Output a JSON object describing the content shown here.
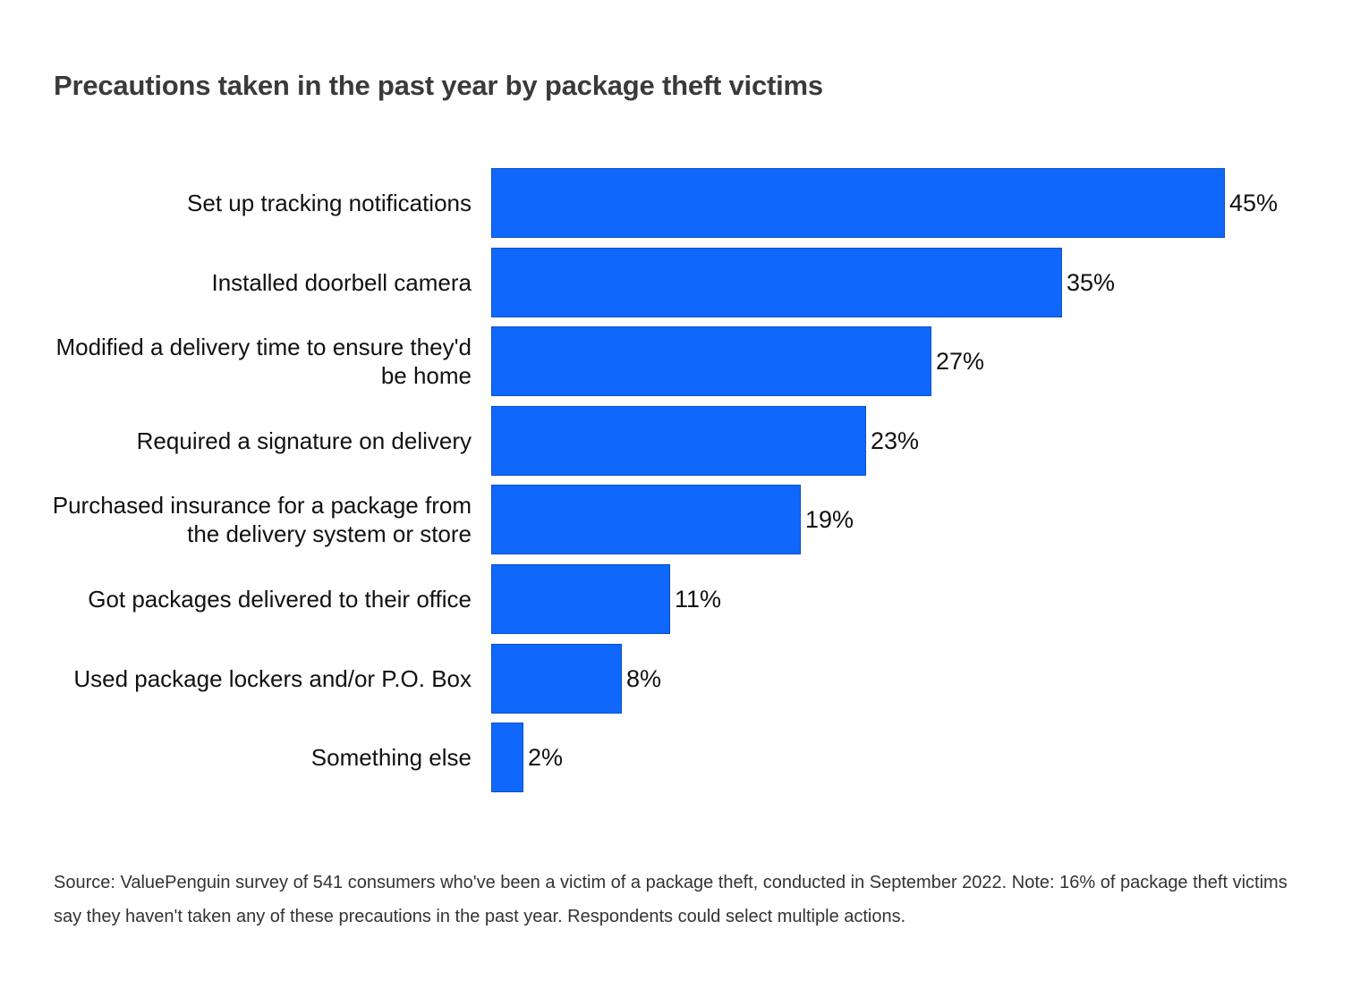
{
  "chart_data": {
    "type": "bar",
    "orientation": "horizontal",
    "title": "Precautions taken in the past year by package theft victims",
    "categories": [
      "Set up tracking notifications",
      "Installed doorbell camera",
      "Modified a delivery time to ensure they'd be home",
      "Required a signature on delivery",
      "Purchased insurance for a package from the delivery system or store",
      "Got packages delivered to their office",
      "Used package lockers and/or P.O. Box",
      "Something else"
    ],
    "values": [
      45,
      35,
      27,
      23,
      19,
      11,
      8,
      2
    ],
    "value_labels": [
      "45%",
      "35%",
      "27%",
      "23%",
      "19%",
      "11%",
      "8%",
      "2%"
    ],
    "unit": "%",
    "xlim": [
      0,
      45
    ],
    "xlabel": "",
    "ylabel": "",
    "grid": false,
    "bar_color": "#0f68fb"
  },
  "source_note": "Source: ValuePenguin survey of 541 consumers who've been a victim of a package theft, conducted in September 2022. Note: 16% of package theft victims say they haven't taken any of these precautions in the past year. Respondents could select multiple actions."
}
